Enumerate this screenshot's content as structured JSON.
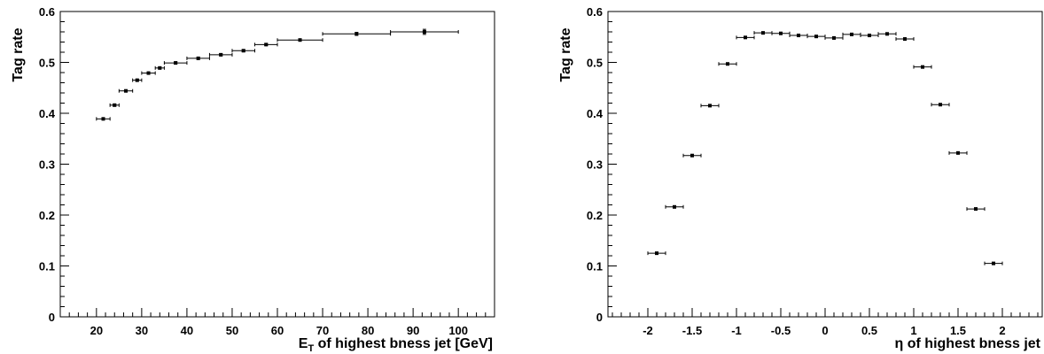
{
  "chart_data": [
    {
      "type": "scatter",
      "title": "",
      "xlabel": "E_T of highest bness jet [GeV]",
      "xlabel_main": "E",
      "xlabel_sub": "T",
      "xlabel_rest": " of highest bness jet [GeV]",
      "ylabel": "Tag rate",
      "xlim": [
        12,
        108
      ],
      "ylim": [
        0,
        0.6
      ],
      "xticks": [
        20,
        30,
        40,
        50,
        60,
        70,
        80,
        90,
        100
      ],
      "yticks": [
        0,
        0.1,
        0.2,
        0.3,
        0.4,
        0.5,
        0.6
      ],
      "x_minor_step": 2,
      "y_minor_step": 0.02,
      "grid": false,
      "series": [
        {
          "marker": "square",
          "points": [
            {
              "x": 21.5,
              "xlo": 20,
              "xhi": 23,
              "y": 0.389,
              "yerr": 0.002
            },
            {
              "x": 24,
              "xlo": 23,
              "xhi": 25,
              "y": 0.416,
              "yerr": 0.002
            },
            {
              "x": 26.5,
              "xlo": 25,
              "xhi": 28,
              "y": 0.444,
              "yerr": 0.002
            },
            {
              "x": 29,
              "xlo": 28,
              "xhi": 30,
              "y": 0.465,
              "yerr": 0.002
            },
            {
              "x": 31.5,
              "xlo": 30,
              "xhi": 33,
              "y": 0.479,
              "yerr": 0.002
            },
            {
              "x": 34,
              "xlo": 33,
              "xhi": 35,
              "y": 0.489,
              "yerr": 0.002
            },
            {
              "x": 37.5,
              "xlo": 35,
              "xhi": 40,
              "y": 0.499,
              "yerr": 0.002
            },
            {
              "x": 42.5,
              "xlo": 40,
              "xhi": 45,
              "y": 0.508,
              "yerr": 0.002
            },
            {
              "x": 47.5,
              "xlo": 45,
              "xhi": 50,
              "y": 0.515,
              "yerr": 0.002
            },
            {
              "x": 52.5,
              "xlo": 50,
              "xhi": 55,
              "y": 0.523,
              "yerr": 0.002
            },
            {
              "x": 57.5,
              "xlo": 55,
              "xhi": 60,
              "y": 0.535,
              "yerr": 0.002
            },
            {
              "x": 65,
              "xlo": 60,
              "xhi": 70,
              "y": 0.544,
              "yerr": 0.002
            },
            {
              "x": 77.5,
              "xlo": 70,
              "xhi": 85,
              "y": 0.556,
              "yerr": 0.003
            },
            {
              "x": 92.5,
              "xlo": 85,
              "xhi": 100,
              "y": 0.56,
              "yerr": 0.005
            }
          ]
        }
      ]
    },
    {
      "type": "scatter",
      "title": "",
      "xlabel": "η of highest bness jet",
      "ylabel": "Tag rate",
      "xlim": [
        -2.45,
        2.45
      ],
      "ylim": [
        0,
        0.6
      ],
      "xticks": [
        -2,
        -1.5,
        -1,
        -0.5,
        0,
        0.5,
        1,
        1.5,
        2
      ],
      "yticks": [
        0,
        0.1,
        0.2,
        0.3,
        0.4,
        0.5,
        0.6
      ],
      "x_minor_step": 0.1,
      "y_minor_step": 0.02,
      "grid": false,
      "series": [
        {
          "marker": "square",
          "points": [
            {
              "x": -1.9,
              "xlo": -2.0,
              "xhi": -1.8,
              "y": 0.125,
              "yerr": 0.002
            },
            {
              "x": -1.7,
              "xlo": -1.8,
              "xhi": -1.6,
              "y": 0.216,
              "yerr": 0.002
            },
            {
              "x": -1.5,
              "xlo": -1.6,
              "xhi": -1.4,
              "y": 0.317,
              "yerr": 0.002
            },
            {
              "x": -1.3,
              "xlo": -1.4,
              "xhi": -1.2,
              "y": 0.415,
              "yerr": 0.002
            },
            {
              "x": -1.1,
              "xlo": -1.2,
              "xhi": -1.0,
              "y": 0.497,
              "yerr": 0.002
            },
            {
              "x": -0.9,
              "xlo": -1.0,
              "xhi": -0.8,
              "y": 0.549,
              "yerr": 0.002
            },
            {
              "x": -0.7,
              "xlo": -0.8,
              "xhi": -0.6,
              "y": 0.558,
              "yerr": 0.002
            },
            {
              "x": -0.5,
              "xlo": -0.6,
              "xhi": -0.4,
              "y": 0.557,
              "yerr": 0.002
            },
            {
              "x": -0.3,
              "xlo": -0.4,
              "xhi": -0.2,
              "y": 0.553,
              "yerr": 0.002
            },
            {
              "x": -0.1,
              "xlo": -0.2,
              "xhi": 0.0,
              "y": 0.551,
              "yerr": 0.002
            },
            {
              "x": 0.1,
              "xlo": 0.0,
              "xhi": 0.2,
              "y": 0.548,
              "yerr": 0.002
            },
            {
              "x": 0.3,
              "xlo": 0.2,
              "xhi": 0.4,
              "y": 0.555,
              "yerr": 0.002
            },
            {
              "x": 0.5,
              "xlo": 0.4,
              "xhi": 0.6,
              "y": 0.553,
              "yerr": 0.002
            },
            {
              "x": 0.7,
              "xlo": 0.6,
              "xhi": 0.8,
              "y": 0.556,
              "yerr": 0.002
            },
            {
              "x": 0.9,
              "xlo": 0.8,
              "xhi": 1.0,
              "y": 0.546,
              "yerr": 0.002
            },
            {
              "x": 1.1,
              "xlo": 1.0,
              "xhi": 1.2,
              "y": 0.491,
              "yerr": 0.002
            },
            {
              "x": 1.3,
              "xlo": 1.2,
              "xhi": 1.4,
              "y": 0.417,
              "yerr": 0.002
            },
            {
              "x": 1.5,
              "xlo": 1.4,
              "xhi": 1.6,
              "y": 0.322,
              "yerr": 0.002
            },
            {
              "x": 1.7,
              "xlo": 1.6,
              "xhi": 1.8,
              "y": 0.212,
              "yerr": 0.002
            },
            {
              "x": 1.9,
              "xlo": 1.8,
              "xhi": 2.0,
              "y": 0.105,
              "yerr": 0.002
            }
          ]
        }
      ]
    }
  ]
}
